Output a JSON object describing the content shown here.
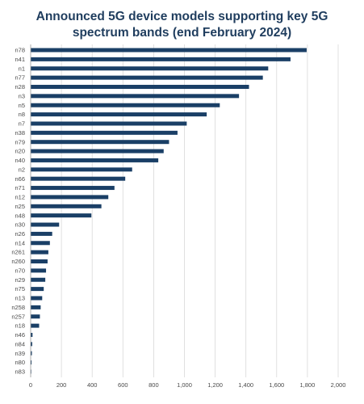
{
  "colors": {
    "bar": "#1a3f66",
    "title": "#1f3d5e",
    "grid": "#d9d9d9",
    "axis": "#9a9a9a",
    "text": "#4a4a4a"
  },
  "chart_data": {
    "type": "bar",
    "orientation": "horizontal",
    "title": "Announced 5G device models supporting key 5G spectrum bands (end February 2024)",
    "title_lines": [
      "Announced 5G device models supporting key 5G",
      "spectrum bands (end February 2024)"
    ],
    "xlabel": "",
    "ylabel": "",
    "xlim": [
      0,
      2000
    ],
    "xticks": [
      0,
      200,
      400,
      600,
      800,
      1000,
      1200,
      1400,
      1600,
      1800,
      2000
    ],
    "xtick_labels": [
      "0",
      "200",
      "400",
      "600",
      "800",
      "1,000",
      "1,200",
      "1,400",
      "1,600",
      "1,800",
      "2,000"
    ],
    "grid": true,
    "legend": "none",
    "categories": [
      "n78",
      "n41",
      "n1",
      "n77",
      "n28",
      "n3",
      "n5",
      "n8",
      "n7",
      "n38",
      "n79",
      "n20",
      "n40",
      "n2",
      "n66",
      "n71",
      "n12",
      "n25",
      "n48",
      "n30",
      "n26",
      "n14",
      "n261",
      "n260",
      "n70",
      "n29",
      "n75",
      "n13",
      "n258",
      "n257",
      "n18",
      "n46",
      "n84",
      "n39",
      "n80",
      "n83"
    ],
    "values": [
      1795,
      1690,
      1545,
      1510,
      1420,
      1355,
      1230,
      1145,
      1015,
      955,
      900,
      865,
      830,
      660,
      615,
      545,
      505,
      460,
      395,
      185,
      140,
      125,
      115,
      110,
      100,
      95,
      85,
      75,
      65,
      60,
      55,
      12,
      10,
      8,
      6,
      4
    ]
  }
}
